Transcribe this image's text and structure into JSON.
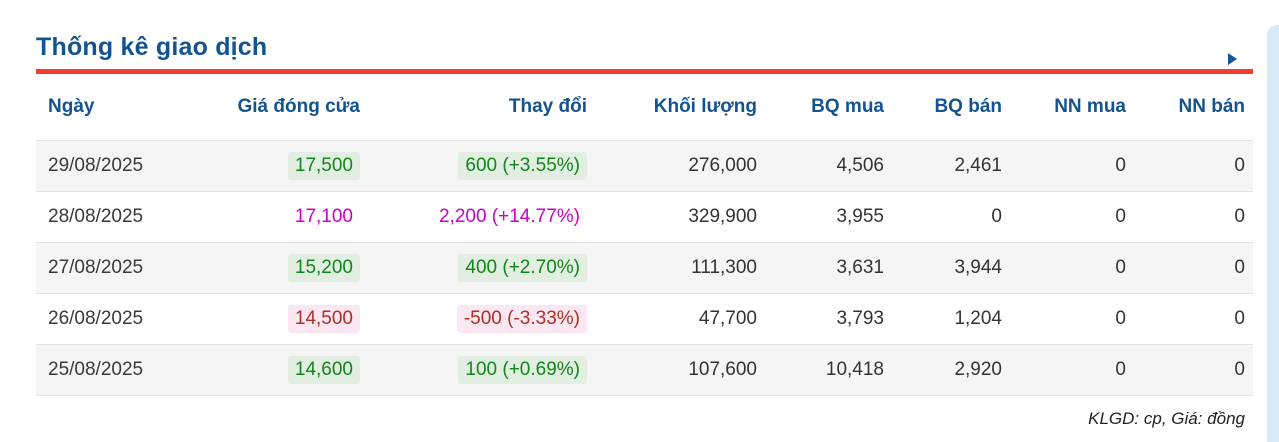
{
  "panel": {
    "title": "Thống kê giao dịch",
    "footer_note": "KLGD: cp, Giá: đồng"
  },
  "colors": {
    "accent_blue": "#14538f",
    "rule_red": "#f23d31",
    "up_green": "#12851a",
    "down_red": "#ad3123",
    "ceiling_magenta": "#cc00cc",
    "row_stripe": "#f4f5f4",
    "side_edge_blue": "#d8e9f7"
  },
  "table": {
    "columns": [
      "Ngày",
      "Giá đóng cửa",
      "Thay đổi",
      "Khối lượng",
      "BQ mua",
      "BQ bán",
      "NN mua",
      "NN bán"
    ],
    "rows": [
      {
        "date": "29/08/2025",
        "close": "17,500",
        "change": "600 (+3.55%)",
        "volume": "276,000",
        "bq_mua": "4,506",
        "bq_ban": "2,461",
        "nn_mua": "0",
        "nn_ban": "0",
        "direction": "up"
      },
      {
        "date": "28/08/2025",
        "close": "17,100",
        "change": "2,200 (+14.77%)",
        "volume": "329,900",
        "bq_mua": "3,955",
        "bq_ban": "0",
        "nn_mua": "0",
        "nn_ban": "0",
        "direction": "ceiling"
      },
      {
        "date": "27/08/2025",
        "close": "15,200",
        "change": "400 (+2.70%)",
        "volume": "111,300",
        "bq_mua": "3,631",
        "bq_ban": "3,944",
        "nn_mua": "0",
        "nn_ban": "0",
        "direction": "up"
      },
      {
        "date": "26/08/2025",
        "close": "14,500",
        "change": "-500 (-3.33%)",
        "volume": "47,700",
        "bq_mua": "3,793",
        "bq_ban": "1,204",
        "nn_mua": "0",
        "nn_ban": "0",
        "direction": "down"
      },
      {
        "date": "25/08/2025",
        "close": "14,600",
        "change": "100 (+0.69%)",
        "volume": "107,600",
        "bq_mua": "10,418",
        "bq_ban": "2,920",
        "nn_mua": "0",
        "nn_ban": "0",
        "direction": "up"
      }
    ]
  }
}
